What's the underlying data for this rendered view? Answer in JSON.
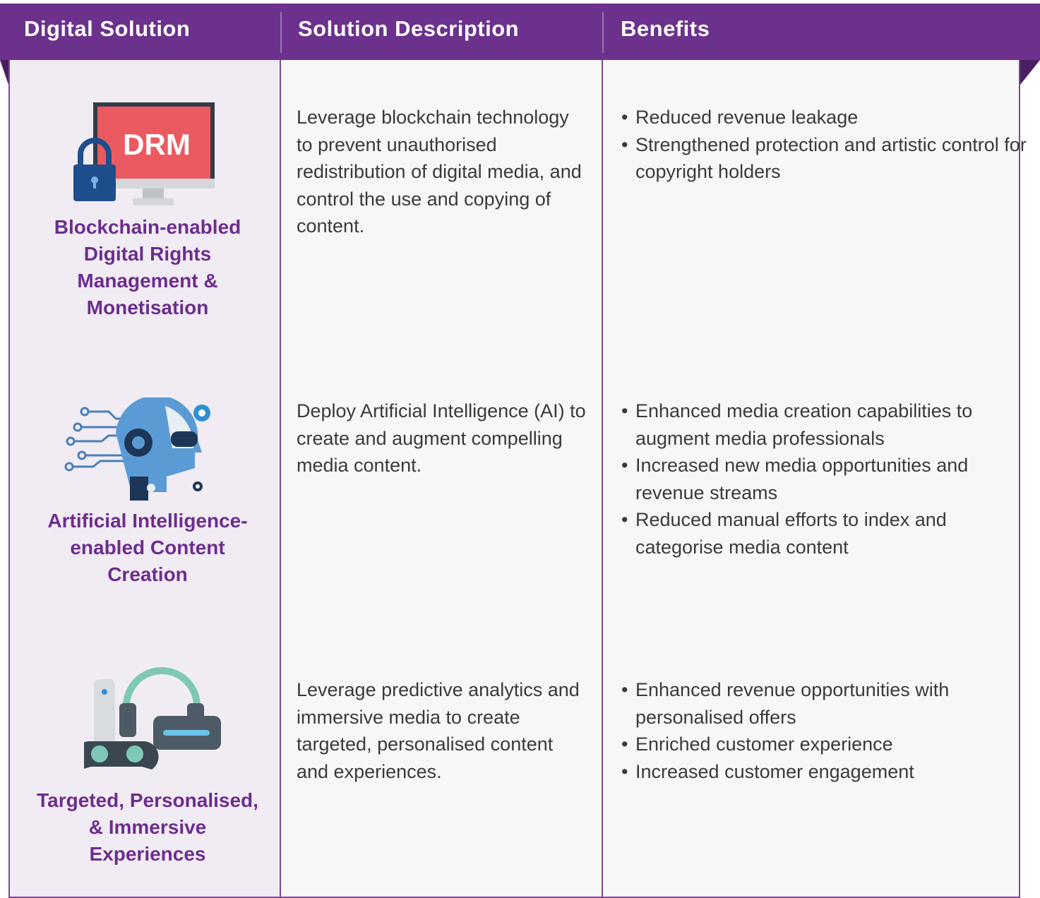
{
  "header": {
    "columns": [
      "Digital Solution",
      "Solution Description",
      "Benefits"
    ]
  },
  "table": {
    "rows": [
      {
        "icon_text": "DRM",
        "title": "Blockchain-enabled Digital Rights Management & Monetisation",
        "description": "Leverage blockchain technology to prevent unauthorised redistribution of digital media, and control the use and copying of content.",
        "benefits": [
          "Reduced revenue leakage",
          "Strengthened protection and artistic control for copyright holders"
        ]
      },
      {
        "title": "Artificial Intelligence-enabled Content Creation",
        "description": "Deploy Artificial Intelligence (AI) to create and augment compelling media content.",
        "benefits": [
          "Enhanced media creation capabilities to augment media professionals",
          "Increased new media opportunities and revenue streams",
          "Reduced manual efforts to index and categorise media content"
        ]
      },
      {
        "title": "Targeted, Personalised, & Immersive Experiences",
        "description": "Leverage predictive analytics and immersive media to create targeted, personalised content and experiences.",
        "benefits": [
          "Enhanced revenue opportunities with personalised offers",
          "Enriched customer experience",
          "Increased customer engagement"
        ]
      }
    ]
  }
}
